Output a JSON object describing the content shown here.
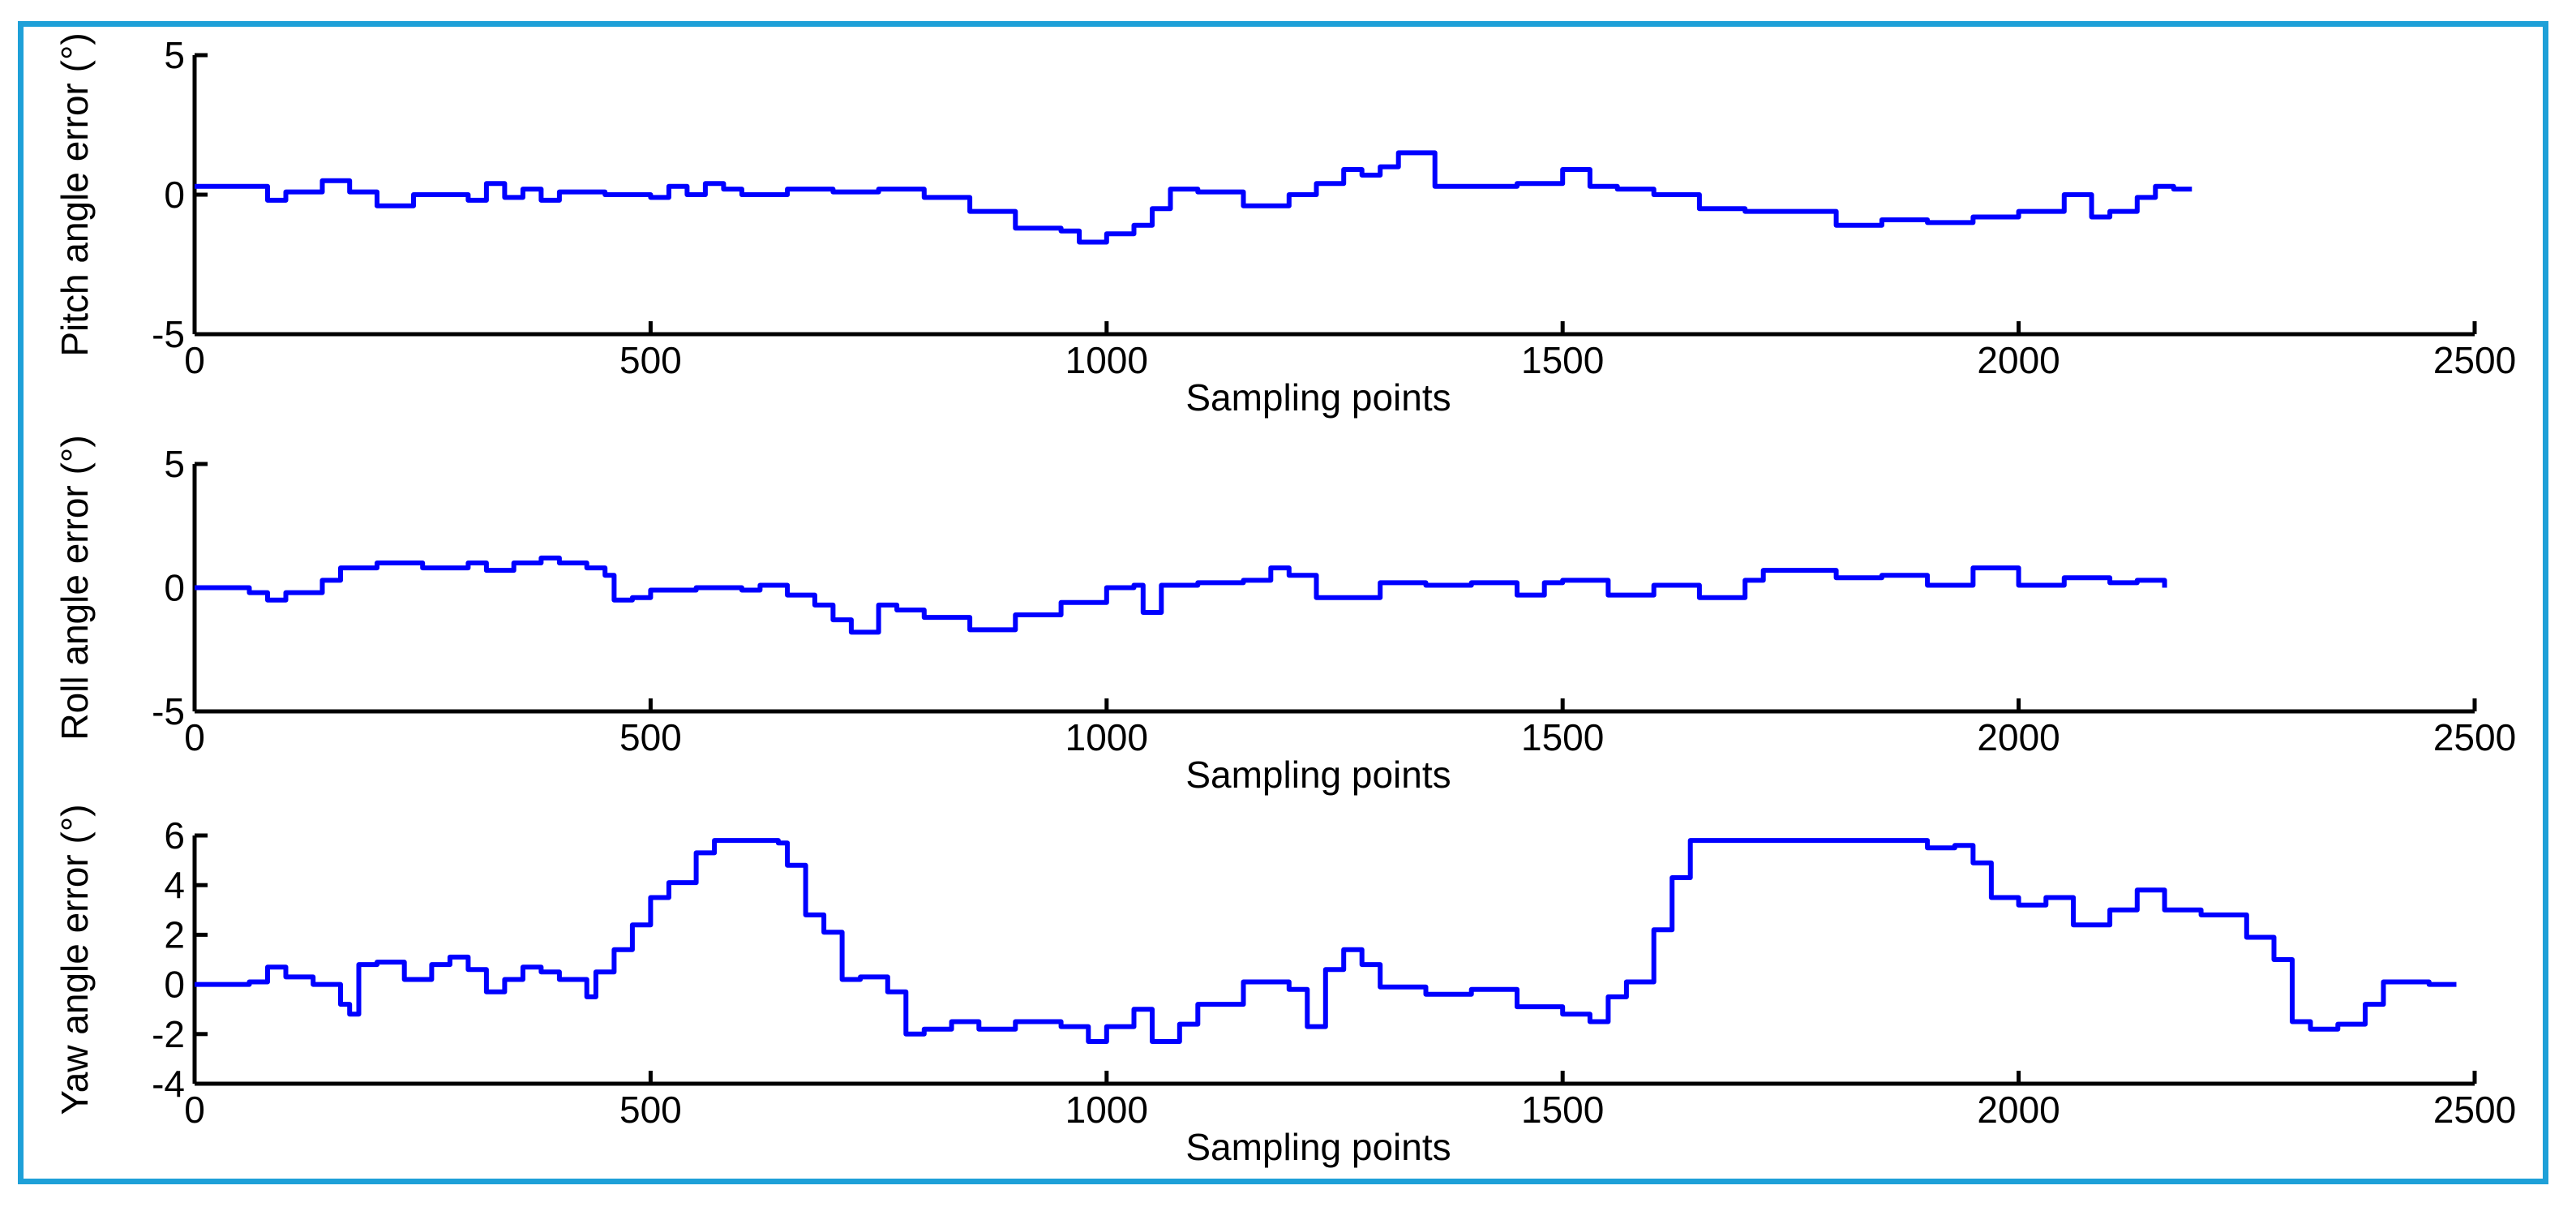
{
  "colors": {
    "frame": "#1ea0d8",
    "line": "#0000ff",
    "axis": "#000000"
  },
  "chart_data": [
    {
      "type": "line",
      "xlabel": "Sampling points",
      "ylabel": "Pitch angle error (°)",
      "xlim": [
        0,
        2500
      ],
      "ylim": [
        -5,
        5
      ],
      "xticks": [
        "0",
        "500",
        "1000",
        "1500",
        "2000",
        "2500"
      ],
      "yticks": [
        "-5",
        "0",
        "5"
      ],
      "series": [
        {
          "name": "Pitch angle error",
          "x": [
            0,
            50,
            80,
            100,
            140,
            170,
            200,
            240,
            300,
            320,
            340,
            360,
            380,
            400,
            450,
            500,
            520,
            540,
            560,
            580,
            600,
            650,
            700,
            750,
            800,
            850,
            900,
            950,
            970,
            1000,
            1030,
            1050,
            1070,
            1100,
            1150,
            1200,
            1230,
            1260,
            1280,
            1300,
            1320,
            1340,
            1360,
            1400,
            1450,
            1500,
            1530,
            1560,
            1600,
            1650,
            1700,
            1750,
            1800,
            1850,
            1900,
            1950,
            2000,
            2050,
            2080,
            2100,
            2130,
            2150,
            2170,
            2190
          ],
          "y": [
            0.3,
            0.3,
            -0.2,
            0.1,
            0.5,
            0.1,
            -0.4,
            0.0,
            -0.2,
            0.4,
            -0.1,
            0.2,
            -0.2,
            0.1,
            0.0,
            -0.1,
            0.3,
            0.0,
            0.4,
            0.2,
            0.0,
            0.2,
            0.1,
            0.2,
            -0.1,
            -0.6,
            -1.2,
            -1.3,
            -1.7,
            -1.4,
            -1.1,
            -0.5,
            0.2,
            0.1,
            -0.4,
            0.0,
            0.4,
            0.9,
            0.7,
            1.0,
            1.5,
            1.5,
            0.3,
            0.3,
            0.4,
            0.9,
            0.3,
            0.2,
            0.0,
            -0.5,
            -0.6,
            -0.6,
            -1.1,
            -0.9,
            -1.0,
            -0.8,
            -0.6,
            0.0,
            -0.8,
            -0.6,
            -0.1,
            0.3,
            0.2,
            0.2
          ]
        }
      ]
    },
    {
      "type": "line",
      "xlabel": "Sampling points",
      "ylabel": "Roll angle error (°)",
      "xlim": [
        0,
        2500
      ],
      "ylim": [
        -5,
        5
      ],
      "xticks": [
        "0",
        "500",
        "1000",
        "1500",
        "2000",
        "2500"
      ],
      "yticks": [
        "-5",
        "0",
        "5"
      ],
      "series": [
        {
          "name": "Roll angle error",
          "x": [
            0,
            30,
            60,
            80,
            100,
            140,
            160,
            200,
            250,
            300,
            320,
            350,
            380,
            400,
            430,
            450,
            460,
            480,
            500,
            550,
            600,
            620,
            650,
            680,
            700,
            720,
            750,
            770,
            800,
            850,
            900,
            950,
            970,
            1000,
            1030,
            1040,
            1060,
            1100,
            1150,
            1180,
            1200,
            1230,
            1300,
            1350,
            1400,
            1450,
            1480,
            1500,
            1520,
            1550,
            1600,
            1650,
            1700,
            1720,
            1800,
            1850,
            1900,
            1950,
            2000,
            2050,
            2100,
            2130,
            2160
          ],
          "y": [
            0.0,
            0.0,
            -0.2,
            -0.5,
            -0.2,
            0.3,
            0.8,
            1.0,
            0.8,
            1.0,
            0.7,
            1.0,
            1.2,
            1.0,
            0.8,
            0.5,
            -0.5,
            -0.4,
            -0.1,
            0.0,
            -0.1,
            0.1,
            -0.3,
            -0.7,
            -1.3,
            -1.8,
            -0.7,
            -0.9,
            -1.2,
            -1.7,
            -1.1,
            -0.6,
            -0.6,
            0.0,
            0.1,
            -1.0,
            0.1,
            0.2,
            0.3,
            0.8,
            0.5,
            -0.4,
            0.2,
            0.1,
            0.2,
            -0.3,
            0.2,
            0.3,
            0.3,
            -0.3,
            0.1,
            -0.4,
            0.3,
            0.7,
            0.4,
            0.5,
            0.1,
            0.8,
            0.1,
            0.4,
            0.2,
            0.3,
            0.0
          ]
        }
      ]
    },
    {
      "type": "line",
      "xlabel": "Sampling points",
      "ylabel": "Yaw angle error (°)",
      "xlim": [
        0,
        2500
      ],
      "ylim": [
        -4,
        6
      ],
      "xticks": [
        "0",
        "500",
        "1000",
        "1500",
        "2000",
        "2500"
      ],
      "yticks": [
        "-4",
        "-2",
        "0",
        "2",
        "4",
        "6"
      ],
      "series": [
        {
          "name": "Yaw angle error",
          "x": [
            0,
            30,
            60,
            80,
            100,
            130,
            160,
            170,
            180,
            200,
            230,
            260,
            280,
            300,
            320,
            340,
            360,
            380,
            400,
            430,
            440,
            460,
            480,
            500,
            520,
            550,
            570,
            600,
            640,
            650,
            670,
            690,
            710,
            730,
            760,
            780,
            800,
            830,
            860,
            900,
            950,
            980,
            1000,
            1030,
            1050,
            1080,
            1100,
            1150,
            1200,
            1220,
            1240,
            1260,
            1280,
            1300,
            1350,
            1400,
            1450,
            1500,
            1530,
            1550,
            1570,
            1600,
            1620,
            1640,
            1700,
            1800,
            1880,
            1900,
            1930,
            1950,
            1970,
            2000,
            2030,
            2060,
            2100,
            2130,
            2160,
            2200,
            2250,
            2280,
            2300,
            2320,
            2350,
            2380,
            2400,
            2450,
            2480
          ],
          "y": [
            0.0,
            0.0,
            0.1,
            0.7,
            0.3,
            0.0,
            -0.8,
            -1.2,
            0.8,
            0.9,
            0.2,
            0.8,
            1.1,
            0.6,
            -0.3,
            0.2,
            0.7,
            0.5,
            0.2,
            -0.5,
            0.5,
            1.4,
            2.4,
            3.5,
            4.1,
            5.3,
            5.8,
            5.8,
            5.7,
            4.8,
            2.8,
            2.1,
            0.2,
            0.3,
            -0.3,
            -2.0,
            -1.8,
            -1.5,
            -1.8,
            -1.5,
            -1.7,
            -2.3,
            -1.7,
            -1.0,
            -2.3,
            -1.6,
            -0.8,
            0.1,
            -0.2,
            -1.7,
            0.6,
            1.4,
            0.8,
            -0.1,
            -0.4,
            -0.2,
            -0.9,
            -1.2,
            -1.5,
            -0.5,
            0.1,
            2.2,
            4.3,
            5.8,
            5.8,
            5.8,
            5.8,
            5.5,
            5.6,
            4.9,
            3.5,
            3.2,
            3.5,
            2.4,
            3.0,
            3.8,
            3.0,
            2.8,
            1.9,
            1.0,
            -1.5,
            -1.8,
            -1.6,
            -0.8,
            0.1,
            0.0,
            0.0
          ]
        }
      ]
    }
  ]
}
